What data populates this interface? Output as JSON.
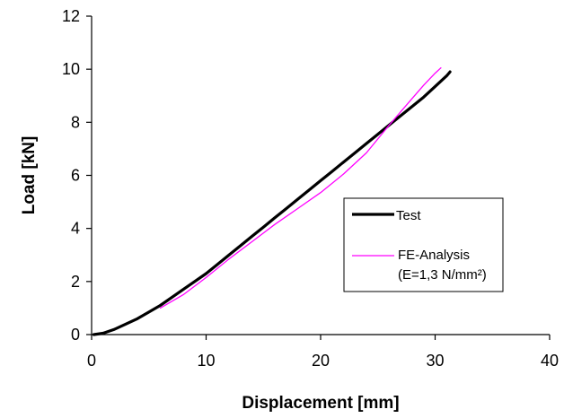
{
  "chart_data": {
    "type": "line",
    "xlabel": "Displacement [mm]",
    "ylabel": "Load [kN]",
    "xlim": [
      0,
      40
    ],
    "ylim": [
      0,
      12
    ],
    "x_ticks": [
      "0",
      "10",
      "20",
      "30",
      "40"
    ],
    "y_ticks": [
      "0",
      "2",
      "4",
      "6",
      "8",
      "10",
      "12"
    ],
    "grid": false,
    "legend_position": "lower-right",
    "series": [
      {
        "name": "Test",
        "color": "#000000",
        "points": [
          [
            0.2,
            0
          ],
          [
            1,
            0.05
          ],
          [
            2,
            0.2
          ],
          [
            3,
            0.4
          ],
          [
            4,
            0.6
          ],
          [
            5,
            0.85
          ],
          [
            6,
            1.1
          ],
          [
            7,
            1.4
          ],
          [
            8,
            1.7
          ],
          [
            9,
            2.0
          ],
          [
            10,
            2.3
          ],
          [
            11,
            2.65
          ],
          [
            12,
            3.0
          ],
          [
            13,
            3.35
          ],
          [
            14,
            3.7
          ],
          [
            15,
            4.05
          ],
          [
            16,
            4.4
          ],
          [
            17,
            4.75
          ],
          [
            18,
            5.1
          ],
          [
            19,
            5.45
          ],
          [
            20,
            5.8
          ],
          [
            21,
            6.15
          ],
          [
            22,
            6.5
          ],
          [
            23,
            6.85
          ],
          [
            24,
            7.2
          ],
          [
            25,
            7.55
          ],
          [
            26,
            7.9
          ],
          [
            27,
            8.25
          ],
          [
            28,
            8.6
          ],
          [
            29,
            8.95
          ],
          [
            30,
            9.35
          ],
          [
            31,
            9.75
          ],
          [
            31.3,
            9.9
          ]
        ]
      },
      {
        "name": "FE-Analysis\n(E=1,3 N/mm²)",
        "legend_lines": [
          "FE-Analysis",
          "(E=1,3 N/mm²)"
        ],
        "color": "#ff00ff",
        "points": [
          [
            6,
            1.0
          ],
          [
            8,
            1.5
          ],
          [
            10,
            2.15
          ],
          [
            12,
            2.85
          ],
          [
            14,
            3.5
          ],
          [
            16,
            4.15
          ],
          [
            18,
            4.75
          ],
          [
            20,
            5.35
          ],
          [
            22,
            6.05
          ],
          [
            24,
            6.85
          ],
          [
            26,
            7.9
          ],
          [
            28,
            8.9
          ],
          [
            29,
            9.4
          ],
          [
            30,
            9.85
          ],
          [
            30.5,
            10.05
          ]
        ]
      }
    ]
  }
}
